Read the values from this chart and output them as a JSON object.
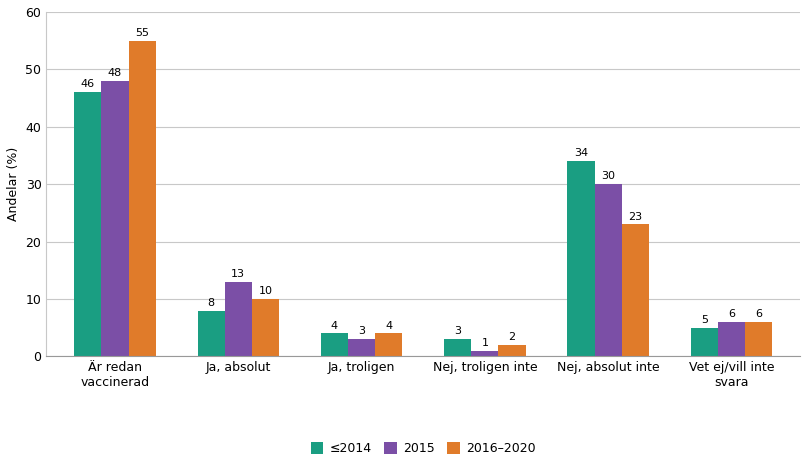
{
  "categories": [
    "Är redan\nvaccinerad",
    "Ja, absolut",
    "Ja, troligen",
    "Nej, troligen inte",
    "Nej, absolut inte",
    "Vet ej/vill inte\nsvara"
  ],
  "series": {
    "≤2014": [
      46,
      8,
      4,
      3,
      34,
      5
    ],
    "2015": [
      48,
      13,
      3,
      1,
      30,
      6
    ],
    "2016–2020": [
      55,
      10,
      4,
      2,
      23,
      6
    ]
  },
  "colors": {
    "≤2014": "#1a9e82",
    "2015": "#7b4fa6",
    "2016–2020": "#e07b2a"
  },
  "ylabel": "Andelar (%)",
  "ylim": [
    0,
    60
  ],
  "yticks": [
    0,
    10,
    20,
    30,
    40,
    50,
    60
  ],
  "bar_width": 0.22,
  "value_fontsize": 8,
  "label_fontsize": 9,
  "legend_fontsize": 9,
  "background_color": "#ffffff",
  "grid_color": "#c8c8c8"
}
